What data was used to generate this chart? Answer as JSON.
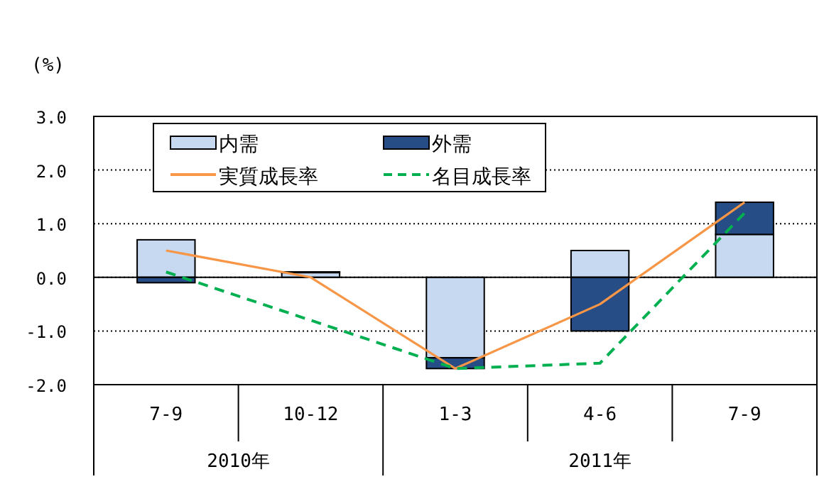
{
  "chart_data": {
    "type": "bar",
    "stacked": true,
    "ylabel": "(%)",
    "categories": [
      "7-9",
      "10-12",
      "1-3",
      "4-6",
      "7-9"
    ],
    "series": [
      {
        "name": "内需",
        "color": "#c6d9f1",
        "values": [
          0.7,
          0.1,
          -1.5,
          0.5,
          0.8
        ]
      },
      {
        "name": "外需",
        "color": "#264d85",
        "values": [
          -0.1,
          0,
          -0.2,
          -1.0,
          0.6
        ]
      },
      {
        "name": "実質成長率",
        "type": "line",
        "color": "#f79646",
        "line_style": "solid",
        "values": [
          0.5,
          0.0,
          -1.7,
          -0.5,
          1.4
        ]
      },
      {
        "name": "名目成長率",
        "type": "line",
        "color": "#00b050",
        "line_style": "dashed",
        "values": [
          0.1,
          -0.8,
          -1.7,
          -1.6,
          1.2
        ]
      }
    ],
    "ylim": [
      -2,
      3
    ],
    "yticks": [
      {
        "value": -2,
        "label": "-2.0"
      },
      {
        "value": -1,
        "label": "-1.0"
      },
      {
        "value": 0,
        "label": "0.0"
      },
      {
        "value": 1,
        "label": "1.0"
      },
      {
        "value": 2,
        "label": "2.0"
      },
      {
        "value": 3,
        "label": "3.0"
      }
    ],
    "grid": "y",
    "legend": "top left",
    "annotations": [
      "2010年",
      "2011年"
    ]
  }
}
